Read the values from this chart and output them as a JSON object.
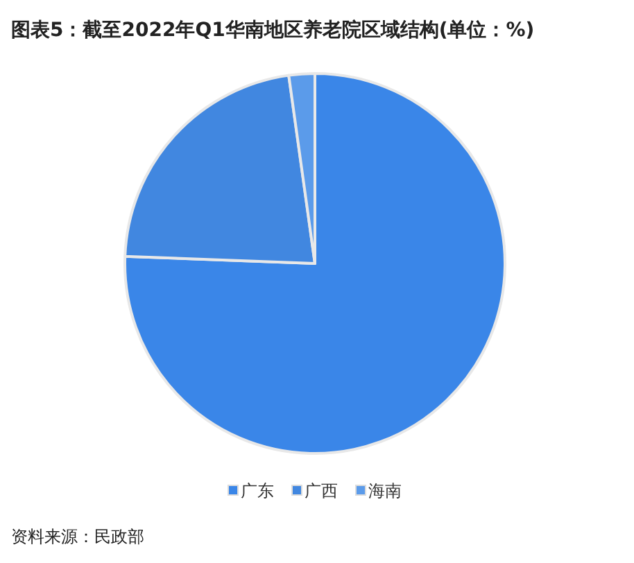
{
  "chart_data": {
    "type": "pie",
    "title": "图表5：截至2022年Q1华南地区养老院区域结构(单位：%)",
    "categories": [
      "广东",
      "广西",
      "海南"
    ],
    "values": [
      75.6,
      22.2,
      2.2
    ],
    "colors": [
      "#3a86e8",
      "#4187e0",
      "#5b9bea"
    ],
    "legend": "bottom",
    "annotations": [
      "资料来源：民政部"
    ]
  }
}
